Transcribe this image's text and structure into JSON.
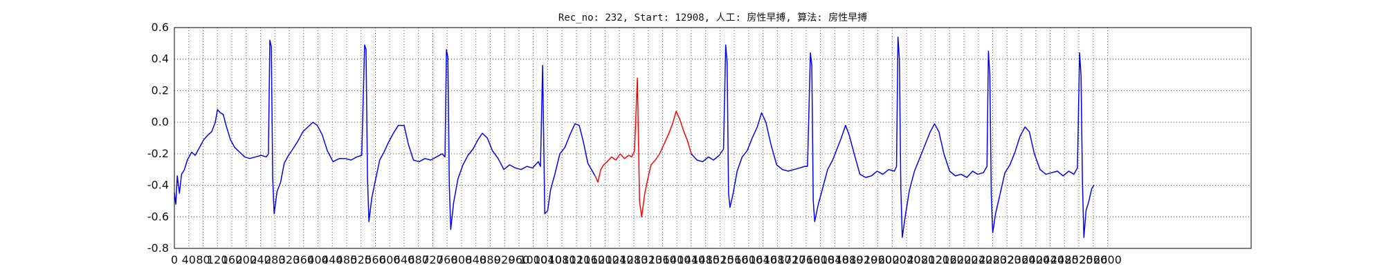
{
  "chart_data": {
    "type": "line",
    "title": "Rec_no: 232, Start: 12908, 人工: 房性早搏, 算法: 房性早搏",
    "xlabel": "",
    "ylabel": "",
    "xlim": [
      0,
      3000
    ],
    "ylim": [
      -0.8,
      0.6
    ],
    "grid": true,
    "legend": "none",
    "x_tick_values": [
      0,
      40,
      80,
      120,
      160,
      200,
      240,
      280,
      320,
      360,
      400,
      440,
      480,
      520,
      560,
      600,
      640,
      680,
      720,
      760,
      800,
      840,
      880,
      920,
      960,
      1000,
      1040,
      1080,
      1120,
      1160,
      1200,
      1240,
      1280,
      1320,
      1360,
      1400,
      1440,
      1480,
      1520,
      1560,
      1600,
      1640,
      1680,
      1720,
      1760,
      1800,
      1840,
      1880,
      1920,
      1960,
      2000,
      2040,
      2080,
      2120,
      2160,
      2200,
      2240,
      2280,
      2320,
      2360,
      2400,
      2440,
      2480,
      2520,
      2560,
      2600
    ],
    "y_ticks": [
      0.6,
      0.4,
      0.2,
      0.0,
      -0.2,
      -0.4,
      -0.6,
      -0.8
    ],
    "series": [
      {
        "color": "#0000ff",
        "points": [
          [
            0,
            -0.45
          ],
          [
            4,
            -0.52
          ],
          [
            8,
            -0.34
          ],
          [
            14,
            -0.45
          ],
          [
            20,
            -0.33
          ],
          [
            28,
            -0.3
          ],
          [
            36,
            -0.24
          ],
          [
            48,
            -0.19
          ],
          [
            58,
            -0.21
          ],
          [
            70,
            -0.16
          ],
          [
            82,
            -0.11
          ],
          [
            94,
            -0.08
          ],
          [
            104,
            -0.06
          ],
          [
            114,
            0.0
          ],
          [
            120,
            0.08
          ],
          [
            128,
            0.06
          ],
          [
            136,
            0.05
          ],
          [
            144,
            -0.02
          ],
          [
            156,
            -0.11
          ],
          [
            168,
            -0.16
          ],
          [
            182,
            -0.19
          ],
          [
            196,
            -0.22
          ],
          [
            210,
            -0.23
          ],
          [
            226,
            -0.22
          ],
          [
            242,
            -0.21
          ],
          [
            256,
            -0.22
          ],
          [
            262,
            -0.2
          ],
          [
            266,
            0.52
          ],
          [
            270,
            0.48
          ],
          [
            274,
            -0.36
          ],
          [
            278,
            -0.58
          ],
          [
            286,
            -0.44
          ],
          [
            296,
            -0.38
          ],
          [
            306,
            -0.26
          ],
          [
            318,
            -0.21
          ],
          [
            330,
            -0.17
          ],
          [
            344,
            -0.12
          ],
          [
            358,
            -0.06
          ],
          [
            372,
            -0.03
          ],
          [
            386,
            0.0
          ],
          [
            398,
            -0.02
          ],
          [
            412,
            -0.08
          ],
          [
            426,
            -0.18
          ],
          [
            442,
            -0.25
          ],
          [
            460,
            -0.23
          ],
          [
            476,
            -0.23
          ],
          [
            492,
            -0.24
          ],
          [
            508,
            -0.22
          ],
          [
            522,
            -0.21
          ],
          [
            530,
            0.49
          ],
          [
            534,
            0.46
          ],
          [
            538,
            -0.35
          ],
          [
            542,
            -0.63
          ],
          [
            550,
            -0.48
          ],
          [
            560,
            -0.37
          ],
          [
            572,
            -0.24
          ],
          [
            584,
            -0.19
          ],
          [
            596,
            -0.13
          ],
          [
            610,
            -0.07
          ],
          [
            624,
            -0.02
          ],
          [
            640,
            -0.02
          ],
          [
            652,
            -0.14
          ],
          [
            666,
            -0.24
          ],
          [
            682,
            -0.25
          ],
          [
            698,
            -0.23
          ],
          [
            714,
            -0.24
          ],
          [
            730,
            -0.22
          ],
          [
            746,
            -0.2
          ],
          [
            754,
            -0.22
          ],
          [
            758,
            0.46
          ],
          [
            762,
            0.41
          ],
          [
            766,
            -0.4
          ],
          [
            770,
            -0.68
          ],
          [
            778,
            -0.51
          ],
          [
            790,
            -0.36
          ],
          [
            804,
            -0.27
          ],
          [
            818,
            -0.21
          ],
          [
            832,
            -0.17
          ],
          [
            846,
            -0.11
          ],
          [
            858,
            -0.07
          ],
          [
            872,
            -0.1
          ],
          [
            886,
            -0.18
          ],
          [
            902,
            -0.23
          ],
          [
            918,
            -0.3
          ],
          [
            934,
            -0.27
          ],
          [
            950,
            -0.29
          ],
          [
            966,
            -0.3
          ],
          [
            982,
            -0.28
          ],
          [
            998,
            -0.29
          ],
          [
            1014,
            -0.25
          ],
          [
            1020,
            -0.28
          ],
          [
            1026,
            0.36
          ],
          [
            1032,
            -0.58
          ],
          [
            1040,
            -0.56
          ],
          [
            1048,
            -0.43
          ],
          [
            1060,
            -0.33
          ],
          [
            1074,
            -0.2
          ],
          [
            1088,
            -0.16
          ],
          [
            1102,
            -0.08
          ],
          [
            1116,
            -0.01
          ],
          [
            1128,
            -0.02
          ],
          [
            1140,
            -0.13
          ],
          [
            1152,
            -0.26
          ],
          [
            1162,
            -0.3
          ],
          [
            1172,
            -0.34
          ]
        ]
      },
      {
        "color": "#ff0000",
        "points": [
          [
            1172,
            -0.34
          ],
          [
            1180,
            -0.38
          ],
          [
            1188,
            -0.3
          ],
          [
            1196,
            -0.27
          ],
          [
            1206,
            -0.25
          ],
          [
            1218,
            -0.22
          ],
          [
            1230,
            -0.24
          ],
          [
            1242,
            -0.2
          ],
          [
            1254,
            -0.23
          ],
          [
            1266,
            -0.21
          ],
          [
            1274,
            -0.22
          ],
          [
            1282,
            -0.18
          ],
          [
            1290,
            0.28
          ],
          [
            1296,
            -0.5
          ],
          [
            1302,
            -0.6
          ],
          [
            1310,
            -0.46
          ],
          [
            1318,
            -0.37
          ],
          [
            1328,
            -0.27
          ],
          [
            1340,
            -0.24
          ],
          [
            1352,
            -0.2
          ],
          [
            1364,
            -0.14
          ],
          [
            1376,
            -0.08
          ],
          [
            1388,
            -0.01
          ],
          [
            1398,
            0.07
          ],
          [
            1408,
            0.02
          ],
          [
            1418,
            -0.05
          ],
          [
            1430,
            -0.12
          ],
          [
            1440,
            -0.2
          ]
        ]
      },
      {
        "color": "#0000ff",
        "points": [
          [
            1440,
            -0.2
          ],
          [
            1456,
            -0.24
          ],
          [
            1472,
            -0.25
          ],
          [
            1488,
            -0.22
          ],
          [
            1502,
            -0.24
          ],
          [
            1518,
            -0.21
          ],
          [
            1530,
            -0.17
          ],
          [
            1536,
            0.49
          ],
          [
            1540,
            0.38
          ],
          [
            1544,
            -0.45
          ],
          [
            1548,
            -0.54
          ],
          [
            1556,
            -0.46
          ],
          [
            1568,
            -0.31
          ],
          [
            1582,
            -0.22
          ],
          [
            1596,
            -0.18
          ],
          [
            1610,
            -0.1
          ],
          [
            1624,
            -0.03
          ],
          [
            1636,
            0.06
          ],
          [
            1648,
            0.0
          ],
          [
            1662,
            -0.14
          ],
          [
            1678,
            -0.27
          ],
          [
            1694,
            -0.3
          ],
          [
            1710,
            -0.31
          ],
          [
            1726,
            -0.3
          ],
          [
            1742,
            -0.29
          ],
          [
            1756,
            -0.28
          ],
          [
            1764,
            -0.28
          ],
          [
            1772,
            0.44
          ],
          [
            1776,
            0.36
          ],
          [
            1780,
            -0.5
          ],
          [
            1784,
            -0.63
          ],
          [
            1794,
            -0.52
          ],
          [
            1806,
            -0.42
          ],
          [
            1820,
            -0.3
          ],
          [
            1834,
            -0.24
          ],
          [
            1846,
            -0.17
          ],
          [
            1858,
            -0.1
          ],
          [
            1870,
            -0.02
          ],
          [
            1880,
            -0.08
          ],
          [
            1894,
            -0.2
          ],
          [
            1910,
            -0.33
          ],
          [
            1926,
            -0.35
          ],
          [
            1942,
            -0.34
          ],
          [
            1958,
            -0.31
          ],
          [
            1974,
            -0.33
          ],
          [
            1990,
            -0.3
          ],
          [
            2006,
            -0.31
          ],
          [
            2012,
            -0.28
          ],
          [
            2016,
            0.54
          ],
          [
            2020,
            0.4
          ],
          [
            2024,
            -0.42
          ],
          [
            2028,
            -0.73
          ],
          [
            2036,
            -0.6
          ],
          [
            2048,
            -0.43
          ],
          [
            2062,
            -0.31
          ],
          [
            2078,
            -0.22
          ],
          [
            2092,
            -0.14
          ],
          [
            2106,
            -0.06
          ],
          [
            2118,
            -0.01
          ],
          [
            2130,
            -0.06
          ],
          [
            2144,
            -0.2
          ],
          [
            2160,
            -0.31
          ],
          [
            2176,
            -0.34
          ],
          [
            2192,
            -0.33
          ],
          [
            2208,
            -0.35
          ],
          [
            2224,
            -0.31
          ],
          [
            2238,
            -0.33
          ],
          [
            2254,
            -0.32
          ],
          [
            2264,
            -0.28
          ],
          [
            2268,
            0.45
          ],
          [
            2272,
            0.3
          ],
          [
            2276,
            -0.46
          ],
          [
            2280,
            -0.7
          ],
          [
            2288,
            -0.58
          ],
          [
            2300,
            -0.46
          ],
          [
            2314,
            -0.32
          ],
          [
            2328,
            -0.27
          ],
          [
            2342,
            -0.19
          ],
          [
            2356,
            -0.09
          ],
          [
            2370,
            -0.03
          ],
          [
            2382,
            -0.06
          ],
          [
            2396,
            -0.2
          ],
          [
            2412,
            -0.3
          ],
          [
            2428,
            -0.33
          ],
          [
            2444,
            -0.32
          ],
          [
            2460,
            -0.31
          ],
          [
            2476,
            -0.34
          ],
          [
            2492,
            -0.31
          ],
          [
            2506,
            -0.33
          ],
          [
            2516,
            -0.29
          ],
          [
            2522,
            0.44
          ],
          [
            2526,
            0.3
          ],
          [
            2530,
            -0.38
          ],
          [
            2534,
            -0.73
          ],
          [
            2540,
            -0.56
          ],
          [
            2548,
            -0.5
          ],
          [
            2556,
            -0.42
          ],
          [
            2562,
            -0.4
          ]
        ]
      }
    ]
  }
}
